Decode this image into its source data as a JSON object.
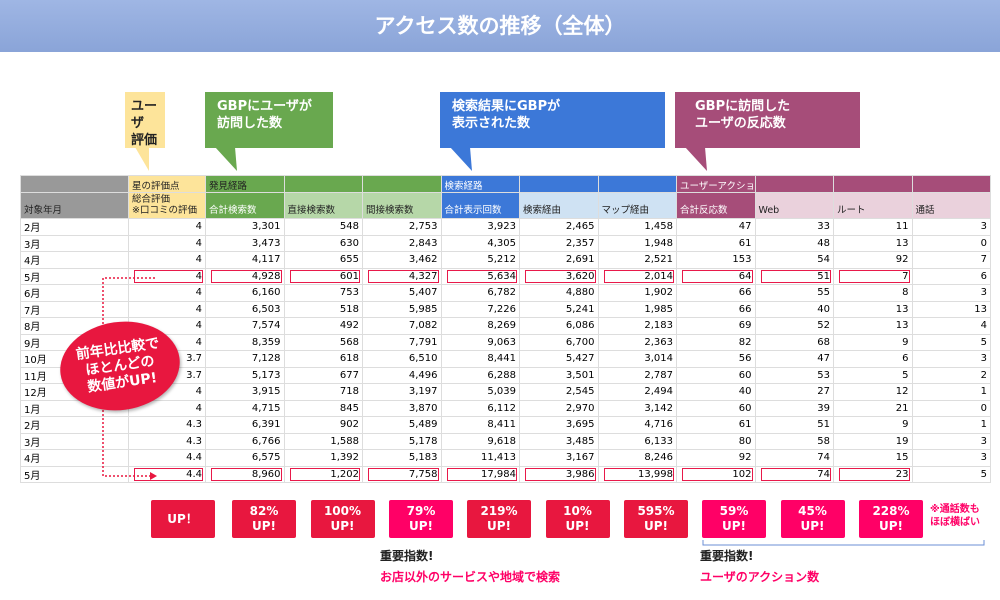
{
  "title": "アクセス数の推移（全体）",
  "callouts": [
    {
      "text": "ユーザ\n評価",
      "color": "#fde49a",
      "textColor": "#222"
    },
    {
      "text": "GBPにユーザが\n訪問した数",
      "color": "#69a84f",
      "textColor": "#fff"
    },
    {
      "text": "検索結果にGBPが\n表示された数",
      "color": "#3c78d8",
      "textColor": "#fff"
    },
    {
      "text": "GBPに訪問した\nユーザの反応数",
      "color": "#a64d79",
      "textColor": "#fff"
    }
  ],
  "table": {
    "group_headers": [
      "",
      "星の評価点",
      "発見経路",
      "",
      "",
      "検索経路",
      "",
      "",
      "ユーザーアクション",
      "",
      "",
      ""
    ],
    "columns": [
      "対象年月",
      "総合評価\n※口コミの評価",
      "合計検索数",
      "直接検索数",
      "間接検索数",
      "合計表示回数",
      "検索経由",
      "マップ経由",
      "合計反応数",
      "Web",
      "ルート",
      "通話"
    ],
    "rows": [
      [
        "2月",
        "4",
        "3,301",
        "548",
        "2,753",
        "3,923",
        "2,465",
        "1,458",
        "47",
        "33",
        "11",
        "3"
      ],
      [
        "3月",
        "4",
        "3,473",
        "630",
        "2,843",
        "4,305",
        "2,357",
        "1,948",
        "61",
        "48",
        "13",
        "0"
      ],
      [
        "4月",
        "4",
        "4,117",
        "655",
        "3,462",
        "5,212",
        "2,691",
        "2,521",
        "153",
        "54",
        "92",
        "7"
      ],
      [
        "5月",
        "4",
        "4,928",
        "601",
        "4,327",
        "5,634",
        "3,620",
        "2,014",
        "64",
        "51",
        "7",
        "6"
      ],
      [
        "6月",
        "4",
        "6,160",
        "753",
        "5,407",
        "6,782",
        "4,880",
        "1,902",
        "66",
        "55",
        "8",
        "3"
      ],
      [
        "7月",
        "4",
        "6,503",
        "518",
        "5,985",
        "7,226",
        "5,241",
        "1,985",
        "66",
        "40",
        "13",
        "13"
      ],
      [
        "8月",
        "4",
        "7,574",
        "492",
        "7,082",
        "8,269",
        "6,086",
        "2,183",
        "69",
        "52",
        "13",
        "4"
      ],
      [
        "9月",
        "4",
        "8,359",
        "568",
        "7,791",
        "9,063",
        "6,700",
        "2,363",
        "82",
        "68",
        "9",
        "5"
      ],
      [
        "10月",
        "3.7",
        "7,128",
        "618",
        "6,510",
        "8,441",
        "5,427",
        "3,014",
        "56",
        "47",
        "6",
        "3"
      ],
      [
        "11月",
        "3.7",
        "5,173",
        "677",
        "4,496",
        "6,288",
        "3,501",
        "2,787",
        "60",
        "53",
        "5",
        "2"
      ],
      [
        "12月",
        "4",
        "3,915",
        "718",
        "3,197",
        "5,039",
        "2,545",
        "2,494",
        "40",
        "27",
        "12",
        "1"
      ],
      [
        "1月",
        "4",
        "4,715",
        "845",
        "3,870",
        "6,112",
        "2,970",
        "3,142",
        "60",
        "39",
        "21",
        "0"
      ],
      [
        "2月",
        "4.3",
        "6,391",
        "902",
        "5,489",
        "8,411",
        "3,695",
        "4,716",
        "61",
        "51",
        "9",
        "1"
      ],
      [
        "3月",
        "4.3",
        "6,766",
        "1,588",
        "5,178",
        "9,618",
        "3,485",
        "6,133",
        "80",
        "58",
        "19",
        "3"
      ],
      [
        "4月",
        "4.4",
        "6,575",
        "1,392",
        "5,183",
        "11,413",
        "3,167",
        "8,246",
        "92",
        "74",
        "15",
        "3"
      ],
      [
        "5月",
        "4.4",
        "8,960",
        "1,202",
        "7,758",
        "17,984",
        "3,986",
        "13,998",
        "102",
        "74",
        "23",
        "5"
      ]
    ]
  },
  "bubble": "前年比比較で\nほとんどの\n数値がUP!",
  "badges": [
    "UP！",
    "82%\nUP!",
    "100%\nUP!",
    "79%\nUP!",
    "219%\nUP!",
    "10%\nUP!",
    "595%\nUP!",
    "59%\nUP!",
    "45%\nUP!",
    "228%\nUP!"
  ],
  "call_note": "※通話数も\nほぼ横ばい",
  "notes": [
    {
      "title": "重要指数!",
      "sub": "お店以外のサービスや地域で検索"
    },
    {
      "title": "重要指数!",
      "sub": "ユーザのアクション数"
    }
  ],
  "colors": {
    "red": "#e8173f",
    "pink": "#ff0066",
    "yellow": "#fde49a",
    "green": "#69a84f",
    "blue": "#3c78d8",
    "purple": "#a64d79"
  }
}
